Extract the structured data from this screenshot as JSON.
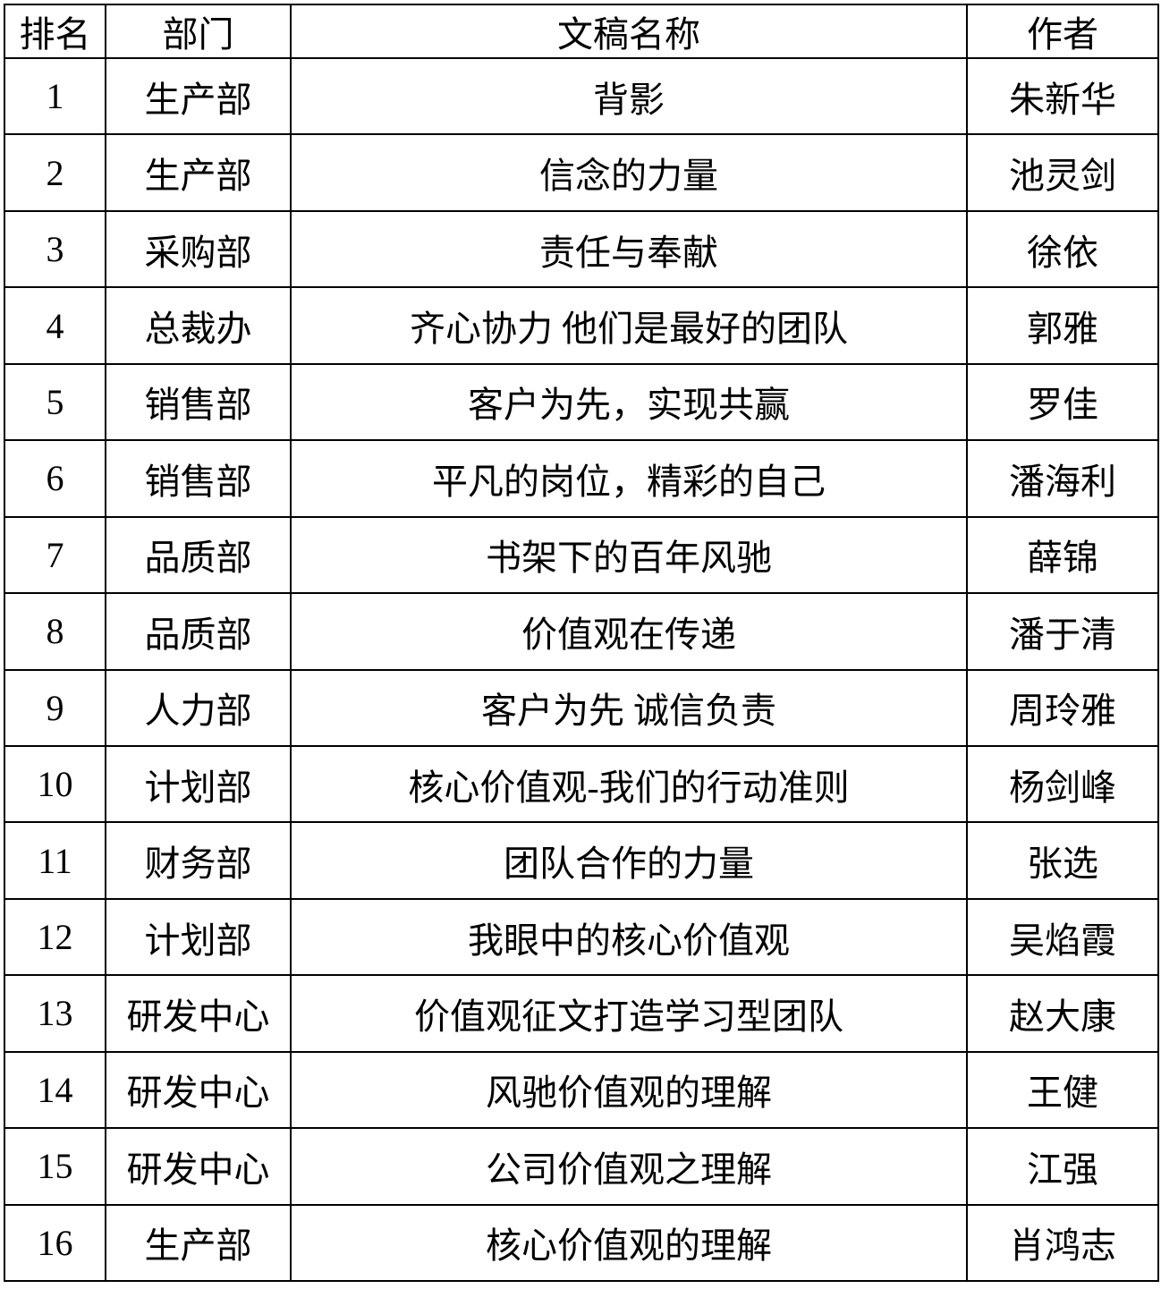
{
  "table": {
    "columns": [
      {
        "key": "rank",
        "label": "排名"
      },
      {
        "key": "department",
        "label": "部门"
      },
      {
        "key": "title",
        "label": "文稿名称"
      },
      {
        "key": "author",
        "label": "作者"
      }
    ],
    "rows": [
      {
        "rank": "1",
        "department": "生产部",
        "title": "背影",
        "author": "朱新华"
      },
      {
        "rank": "2",
        "department": "生产部",
        "title": "信念的力量",
        "author": "池灵剑"
      },
      {
        "rank": "3",
        "department": "采购部",
        "title": "责任与奉献",
        "author": "徐依"
      },
      {
        "rank": "4",
        "department": "总裁办",
        "title": "齐心协力 他们是最好的团队",
        "author": "郭雅"
      },
      {
        "rank": "5",
        "department": "销售部",
        "title": "客户为先，实现共赢",
        "author": "罗佳"
      },
      {
        "rank": "6",
        "department": "销售部",
        "title": "平凡的岗位，精彩的自己",
        "author": "潘海利"
      },
      {
        "rank": "7",
        "department": "品质部",
        "title": "书架下的百年风驰",
        "author": "薛锦"
      },
      {
        "rank": "8",
        "department": "品质部",
        "title": "价值观在传递",
        "author": "潘于清"
      },
      {
        "rank": "9",
        "department": "人力部",
        "title": "客户为先 诚信负责",
        "author": "周玲雅"
      },
      {
        "rank": "10",
        "department": "计划部",
        "title": "核心价值观-我们的行动准则",
        "author": "杨剑峰"
      },
      {
        "rank": "11",
        "department": "财务部",
        "title": "团队合作的力量",
        "author": "张选"
      },
      {
        "rank": "12",
        "department": "计划部",
        "title": "我眼中的核心价值观",
        "author": "吴焰霞"
      },
      {
        "rank": "13",
        "department": "研发中心",
        "title": "价值观征文打造学习型团队",
        "author": "赵大康"
      },
      {
        "rank": "14",
        "department": "研发中心",
        "title": "风驰价值观的理解",
        "author": "王健"
      },
      {
        "rank": "15",
        "department": "研发中心",
        "title": "公司价值观之理解",
        "author": "江强"
      },
      {
        "rank": "16",
        "department": "生产部",
        "title": "核心价值观的理解",
        "author": "肖鸿志"
      }
    ]
  },
  "colors": {
    "border": "#000000",
    "text": "#000000",
    "background": "#ffffff"
  }
}
